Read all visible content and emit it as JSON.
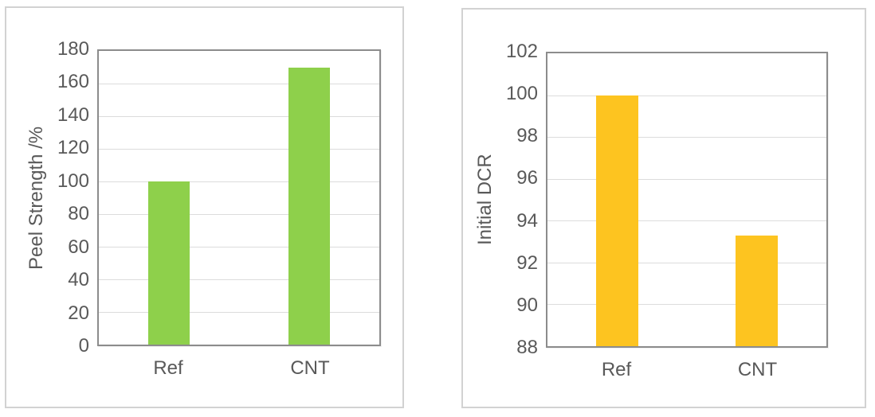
{
  "page": {
    "background": "#ffffff",
    "description": "Two side-by-side bar charts comparing Ref and CNT samples"
  },
  "style": {
    "tick_label_color": "#595959",
    "axis_title_color": "#595959",
    "gridline_color": "#dcdcdc",
    "plot_border_color": "#8c8c8c",
    "card_border_color": "#d2d2d2"
  },
  "chart_data": [
    {
      "id": "peel-strength",
      "type": "bar",
      "title": "",
      "xlabel": "",
      "ylabel": "Peel Strength /%",
      "categories": [
        "Ref",
        "CNT"
      ],
      "values": [
        100,
        170
      ],
      "ylim": [
        0,
        180
      ],
      "yticks": [
        0,
        20,
        40,
        60,
        80,
        100,
        120,
        140,
        160,
        180
      ],
      "grid": "horizontal",
      "legend": "none",
      "bar_color": "#8ed04b",
      "bar_width_fraction": 0.15
    },
    {
      "id": "initial-dcr",
      "type": "bar",
      "title": "",
      "xlabel": "",
      "ylabel": "Initial DCR",
      "categories": [
        "Ref",
        "CNT"
      ],
      "values": [
        100,
        93.3
      ],
      "ylim": [
        88,
        102
      ],
      "yticks": [
        88,
        90,
        92,
        94,
        96,
        98,
        100,
        102
      ],
      "grid": "horizontal",
      "legend": "none",
      "bar_color": "#fdc420",
      "bar_width_fraction": 0.15
    }
  ]
}
